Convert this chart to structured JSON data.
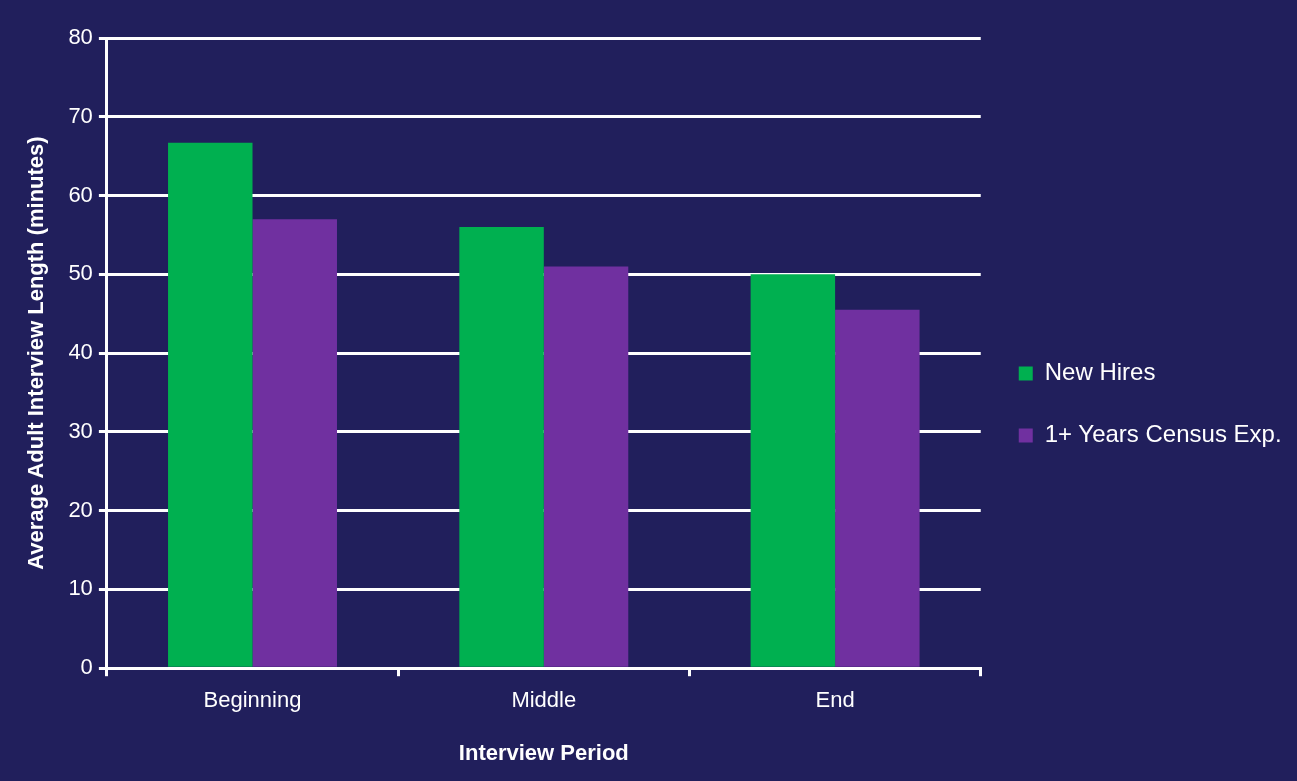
{
  "chart_data": {
    "type": "bar",
    "xlabel": "Interview Period",
    "ylabel": "Average Adult Interview Length (minutes)",
    "categories": [
      "Beginning",
      "Middle",
      "End"
    ],
    "series": [
      {
        "name": "New Hires",
        "color": "#00b050",
        "values": [
          66.7,
          56.0,
          50.0
        ]
      },
      {
        "name": "1+ Years Census Exp.",
        "color": "#7030a0",
        "values": [
          57.0,
          51.0,
          45.5
        ]
      }
    ],
    "ylim": [
      0,
      80
    ],
    "yticks": [
      0,
      10,
      20,
      30,
      40,
      50,
      60,
      70,
      80
    ],
    "grid": "y",
    "legend": "right"
  }
}
